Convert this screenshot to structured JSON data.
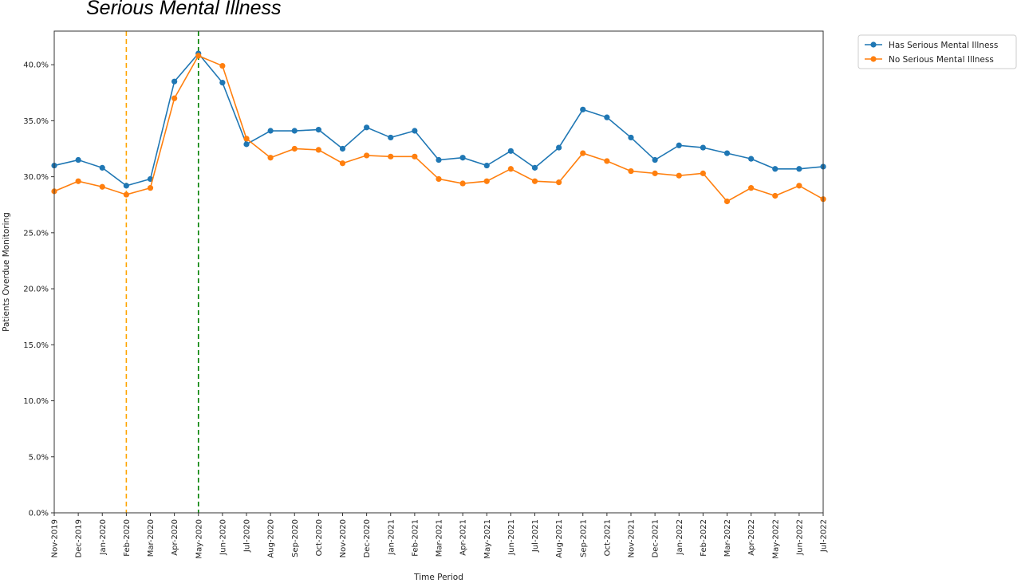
{
  "page_title": "Serious Mental Illness",
  "chart_data": {
    "type": "line",
    "xlabel": "Time Period",
    "ylabel": "Patients Overdue Monitoring",
    "ylim": [
      0,
      43
    ],
    "yticks": [
      0,
      5,
      10,
      15,
      20,
      25,
      30,
      35,
      40
    ],
    "ytick_labels": [
      "0.0%",
      "5.0%",
      "10.0%",
      "15.0%",
      "20.0%",
      "25.0%",
      "30.0%",
      "35.0%",
      "40.0%"
    ],
    "categories": [
      "Nov-2019",
      "Dec-2019",
      "Jan-2020",
      "Feb-2020",
      "Mar-2020",
      "Apr-2020",
      "May-2020",
      "Jun-2020",
      "Jul-2020",
      "Aug-2020",
      "Sep-2020",
      "Oct-2020",
      "Nov-2020",
      "Dec-2020",
      "Jan-2021",
      "Feb-2021",
      "Mar-2021",
      "Apr-2021",
      "May-2021",
      "Jun-2021",
      "Jul-2021",
      "Aug-2021",
      "Sep-2021",
      "Oct-2021",
      "Nov-2021",
      "Dec-2021",
      "Jan-2022",
      "Feb-2022",
      "Mar-2022",
      "Apr-2022",
      "May-2022",
      "Jun-2022",
      "Jul-2022"
    ],
    "series": [
      {
        "name": "Has Serious Mental Illness",
        "color": "#1f77b4",
        "values": [
          31.0,
          31.5,
          30.8,
          29.2,
          29.8,
          38.5,
          41.0,
          38.4,
          32.9,
          34.1,
          34.1,
          34.2,
          32.5,
          34.4,
          33.5,
          34.1,
          31.5,
          31.7,
          31.0,
          32.3,
          30.8,
          32.6,
          36.0,
          35.3,
          33.5,
          31.5,
          32.8,
          32.6,
          32.1,
          31.6,
          30.7,
          30.7,
          30.9
        ]
      },
      {
        "name": "No Serious Mental Illness",
        "color": "#ff7f0e",
        "values": [
          28.7,
          29.6,
          29.1,
          28.4,
          29.0,
          37.0,
          40.8,
          39.9,
          33.4,
          31.7,
          32.5,
          32.4,
          31.2,
          31.9,
          31.8,
          31.8,
          29.8,
          29.4,
          29.6,
          30.7,
          29.6,
          29.5,
          32.1,
          31.4,
          30.5,
          30.3,
          30.1,
          30.3,
          27.8,
          29.0,
          28.3,
          29.2,
          28.0
        ]
      }
    ],
    "reference_lines": [
      {
        "category": "Feb-2020",
        "color": "#ffa500",
        "style": "dashed"
      },
      {
        "category": "May-2020",
        "color": "#008000",
        "style": "dashed"
      }
    ],
    "grid": false,
    "legend_position": "outside top-right"
  }
}
